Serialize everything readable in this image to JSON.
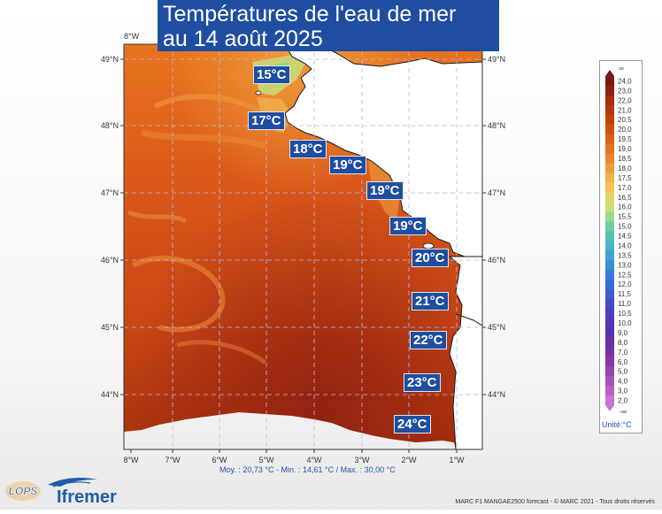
{
  "title": {
    "line1": "Températures de l'eau de mer",
    "line2": "au 14 août 2025"
  },
  "map": {
    "top_left_lon_label": "8°W",
    "lat_labels_left": [
      "49°N",
      "48°N",
      "47°N",
      "46°N",
      "45°N",
      "44°N"
    ],
    "lat_labels_right": [
      "49°N",
      "48°N",
      "47°N",
      "46°N",
      "45°N",
      "44°N"
    ],
    "lon_labels_bottom": [
      "8°W",
      "7°W",
      "6°W",
      "5°W",
      "4°W",
      "3°W",
      "2°W",
      "1°W"
    ],
    "temp_labels": [
      "15°C",
      "17°C",
      "18°C",
      "19°C",
      "19°C",
      "19°C",
      "20°C",
      "21°C",
      "22°C",
      "23°C",
      "24°C"
    ]
  },
  "stats": {
    "text": "Moy. : 20,73 °C   -   Min. : 14,61 °C / Max. : 30,00 °C"
  },
  "legend": {
    "values": [
      "24,0",
      "23,0",
      "22,0",
      "21,0",
      "20,5",
      "20,0",
      "19,5",
      "19,0",
      "18,5",
      "18,0",
      "17,5",
      "17,0",
      "16,5",
      "16,0",
      "15,5",
      "15,0",
      "14,5",
      "14,0",
      "13,5",
      "13,0",
      "12,5",
      "12,0",
      "11,5",
      "11,0",
      "10,5",
      "10,0",
      "9,0",
      "8,0",
      "7,0",
      "6,0",
      "5,0",
      "4,0",
      "3,0",
      "2,0"
    ],
    "colors": [
      "#7a1a10",
      "#8f2310",
      "#a32d0e",
      "#b5360c",
      "#c4420a",
      "#d05010",
      "#da6018",
      "#e47222",
      "#ea8430",
      "#ef9a3c",
      "#f3b04a",
      "#f2c458",
      "#e8d466",
      "#c8dd74",
      "#9ad98a",
      "#6fcf9e",
      "#55c4b2",
      "#48b4c4",
      "#3fa2d0",
      "#3a8fd8",
      "#387cd8",
      "#3a6ad4",
      "#3d5ace",
      "#424cc6",
      "#4a40be",
      "#5336b6",
      "#5e30ae",
      "#6a2ea8",
      "#7830a6",
      "#8638a8",
      "#9644ae",
      "#a652b6",
      "#b662c0",
      "#c676cc"
    ],
    "top_symbol": "∞",
    "bottom_symbol": "-∞",
    "unit": "Unité:°C"
  },
  "credits": {
    "text": "MARC F1 MANGAE2500 forecast - © MARC 2021 - Tous droits réservés"
  },
  "logos": {
    "lops": "LOPS",
    "ifremer": "Ifremer"
  }
}
